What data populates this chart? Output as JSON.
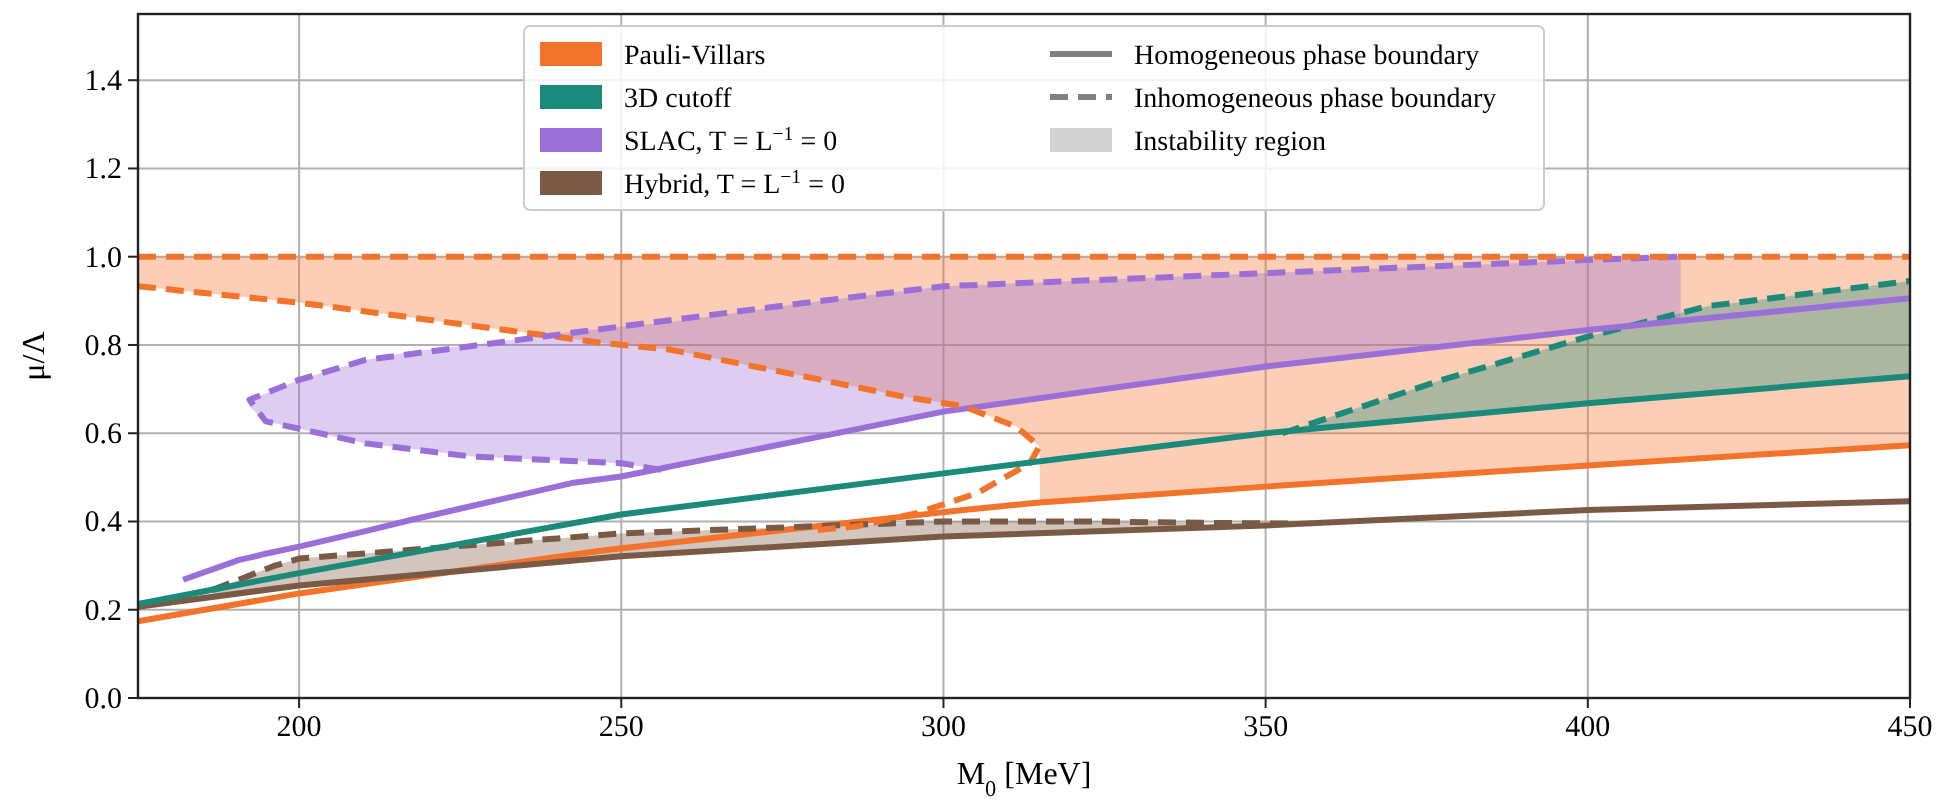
{
  "chart_data": {
    "type": "line",
    "xlabel": "M$_{0}$ [MeV]",
    "ylabel": "μ/Λ",
    "xlim": [
      175,
      450
    ],
    "ylim": [
      0,
      1.55
    ],
    "xticks": [
      200,
      250,
      300,
      350,
      400,
      450
    ],
    "yticks": [
      {
        "value": 0,
        "label": "0.0"
      },
      0.2,
      0.4,
      0.6,
      0.8,
      {
        "value": 1,
        "label": "1.0"
      },
      1.2,
      1.4
    ],
    "grid": true,
    "legend": "top",
    "annotations": [
      "Homogeneous phase boundary",
      "Inhomogeneous phase boundary",
      "Instability region"
    ],
    "ref_lines": [
      {
        "axis": "y",
        "value": 1,
        "color": "#f4732a",
        "line_style": "dashed"
      }
    ],
    "series": [
      {
        "name": "Pauli-Villars",
        "color": "#f4732a",
        "line_style": "solid",
        "x": [
          175,
          200,
          247.4,
          257.7,
          278.3,
          293.8,
          303.1,
          311.3,
          314.9,
          315,
          350,
          400,
          450
        ],
        "values": [
          0.174,
          0.237,
          0.335,
          0.352,
          0.386,
          0.411,
          0.426,
          0.438,
          0.443,
          0.443,
          0.479,
          0.527,
          0.573
        ],
        "upper": [
          1,
          1,
          1,
          1,
          1,
          1,
          1,
          1,
          1,
          1,
          1,
          1,
          1
        ],
        "lower": [
          0.933,
          0.896,
          0.804,
          0.789,
          0.729,
          0.683,
          0.661,
          0.615,
          0.57,
          0.445,
          0.479,
          0.527,
          0.573
        ]
      },
      {
        "name": "3D cutoff",
        "color": "#1b8a7a",
        "line_style": "dashed",
        "x": [
          352.6,
          361.8,
          377.4,
          400,
          418.6,
          450
        ],
        "values": [
          0.6,
          0.645,
          0.721,
          0.819,
          0.888,
          0.945
        ],
        "upper": [
          0.6,
          0.645,
          0.721,
          0.819,
          0.888,
          0.945
        ],
        "lower": [
          0.6,
          0.613,
          0.635,
          0.668,
          0.691,
          0.729
        ]
      },
      {
        "name": "SLAC, T = L$^{−1}$ = 0",
        "color": "#9b6fd8",
        "line_style": "solid",
        "x": [
          182,
          190.7,
          192.3,
          194.8,
          200,
          210.3,
          217.5,
          226.8,
          242.3,
          250,
          256.2,
          257.7,
          278.3,
          300,
          350,
          400,
          414.4,
          450
        ],
        "values": [
          0.268,
          0.313,
          0.318,
          0.327,
          0.343,
          0.378,
          0.404,
          0.435,
          0.487,
          0.502,
          0.52,
          0.525,
          0.585,
          0.649,
          0.751,
          0.834,
          0.855,
          0.906
        ],
        "upper": [
          null,
          null,
          0.676,
          0.69,
          0.721,
          0.766,
          0.785,
          0.8,
          0.83,
          0.842,
          0.85,
          0.852,
          0.895,
          0.933,
          0.963,
          0.992,
          1,
          null
        ],
        "lower": [
          null,
          null,
          0.66,
          0.627,
          0.61,
          0.577,
          0.565,
          0.547,
          0.537,
          0.532,
          0.517,
          0.525,
          0.585,
          0.649,
          0.751,
          0.834,
          0.855,
          null
        ]
      },
      {
        "name": "Hybrid, T = L$^{−1}$ = 0",
        "color": "#7a5a45",
        "line_style": "solid",
        "x": [
          175,
          200,
          250,
          300,
          350,
          400,
          450
        ],
        "values": [
          0.207,
          0.255,
          0.321,
          0.366,
          0.391,
          0.426,
          0.446
        ]
      },
      {
        "color": "#7a5a45",
        "line_style": "dashed",
        "x": [
          186.6,
          195.9,
          200,
          250,
          300,
          323,
          340,
          355
        ],
        "values": [
          0.245,
          0.298,
          0.316,
          0.373,
          0.4,
          0.4,
          0.397,
          0.395
        ],
        "upper": [
          0.245,
          0.298,
          0.316,
          0.373,
          0.4,
          0.4,
          0.397,
          null
        ],
        "lower": [
          0.23,
          0.247,
          0.255,
          0.321,
          0.366,
          0.378,
          0.386,
          null
        ]
      },
      {
        "color": "#f4732a",
        "line_style": "dashed",
        "x": [
          175,
          200,
          247.4,
          257.7,
          278.3,
          293.8,
          303.1,
          311.3,
          314.9,
          313.4,
          305.2,
          295.9,
          286.6,
          280
        ],
        "values": [
          0.933,
          0.896,
          0.804,
          0.789,
          0.729,
          0.683,
          0.661,
          0.615,
          0.57,
          0.532,
          0.464,
          0.419,
          0.389,
          0.38
        ]
      },
      {
        "color": "#1b8a7a",
        "line_style": "solid",
        "x": [
          175,
          200,
          250,
          300,
          350,
          400,
          450
        ],
        "values": [
          0.213,
          0.283,
          0.416,
          0.509,
          0.6,
          0.668,
          0.729
        ]
      },
      {
        "color": "#9b6fd8",
        "line_style": "dashed",
        "x": [
          256.2,
          250,
          226.8,
          210.3,
          194.8,
          192.3,
          200,
          210.3,
          250,
          278.3,
          300,
          350.4,
          401,
          414.4
        ],
        "values": [
          0.517,
          0.532,
          0.547,
          0.577,
          0.627,
          0.676,
          0.721,
          0.766,
          0.842,
          0.895,
          0.933,
          0.963,
          0.993,
          1
        ]
      }
    ]
  }
}
